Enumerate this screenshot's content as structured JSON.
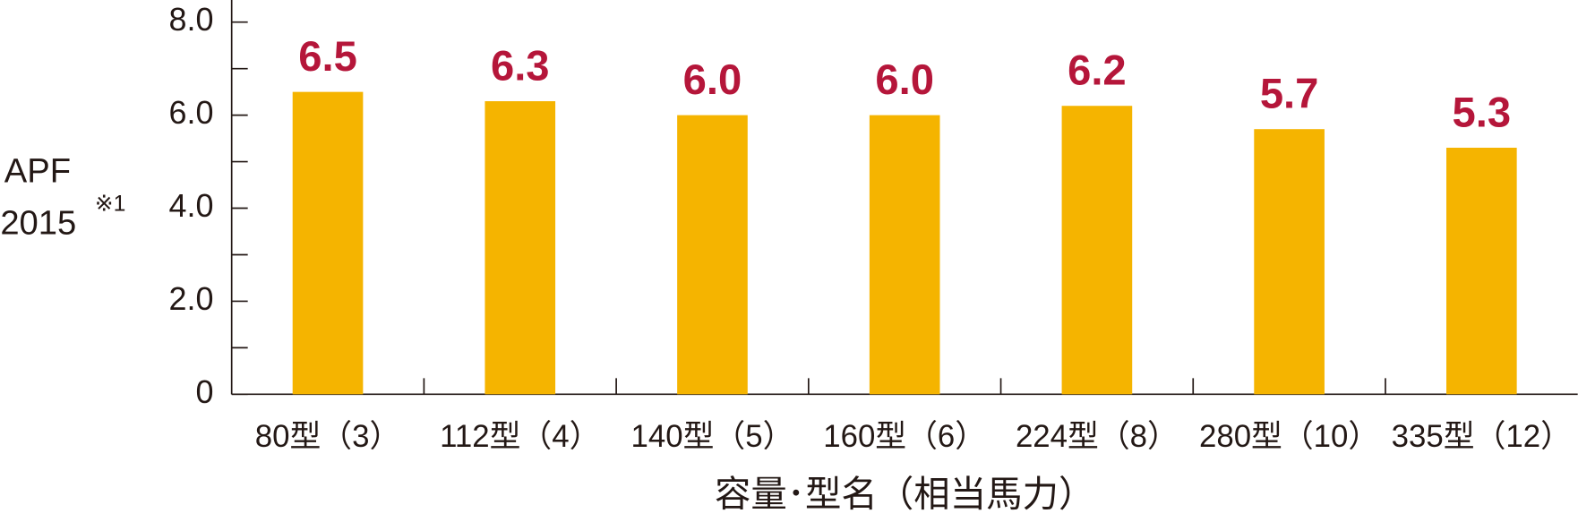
{
  "chart_data": {
    "type": "bar",
    "ylabel": [
      "APF",
      "2015"
    ],
    "ylabel_note": "※1",
    "xlabel": "容量･型名（相当馬力）",
    "categories": [
      "80型（3）",
      "112型（4）",
      "140型（5）",
      "160型（6）",
      "224型（8）",
      "280型（10）",
      "335型（12）"
    ],
    "values": [
      6.5,
      6.3,
      6.0,
      6.0,
      6.2,
      5.7,
      5.3
    ],
    "value_labels": [
      "6.5",
      "6.3",
      "6.0",
      "6.0",
      "6.2",
      "5.7",
      "5.3"
    ],
    "color": "#f5b400",
    "label_color": "#b5163a",
    "ylim": [
      0,
      8
    ],
    "yticks": [
      0,
      {
        "value": 2,
        "label": "2.0"
      },
      {
        "value": 4,
        "label": "4.0"
      },
      {
        "value": 6,
        "label": "6.0"
      },
      {
        "value": 8,
        "label": "8.0"
      }
    ]
  }
}
